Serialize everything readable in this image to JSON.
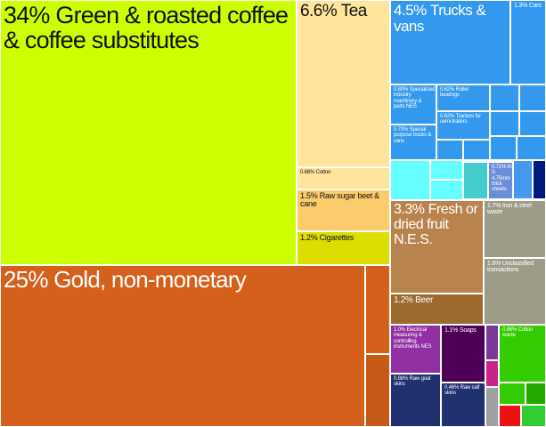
{
  "chart_data": {
    "type": "treemap",
    "categories": [
      "Green & roasted coffee & coffee substitutes",
      "Gold, non-monetary",
      "Tea",
      "Trucks & vans",
      "Fresh or dried fruit N.E.S.",
      "Iron & steel waste",
      "Unclassified transactions",
      "Raw sugar beet & cane",
      "Cars",
      "Cigarettes",
      "Beer",
      "Soaps",
      "Electrical measuring & controlling instruments NES",
      "Raw goat skins",
      "Cotton waste",
      "Specialized industry machinery & parts NES",
      "Iron/steel 3-4.75mm thick sheets",
      "Special purpose trucks & vans",
      "Cotton",
      "Roller bearings",
      "Tractors for semi-trailers",
      "Raw calf skins"
    ],
    "values": [
      34,
      25,
      6.6,
      4.5,
      3.3,
      1.7,
      1.6,
      1.5,
      1.3,
      1.2,
      1.2,
      1.1,
      1.0,
      0.88,
      0.86,
      0.8,
      0.71,
      0.7,
      0.68,
      0.62,
      0.62,
      0.46
    ],
    "value_labels": [
      "34%",
      "25%",
      "6.6%",
      "4.5%",
      "3.3%",
      "1.7%",
      "1.6%",
      "1.5%",
      "1.3%",
      "1.2%",
      "1.2%",
      "1.1%",
      "1.0%",
      "0.88%",
      "0.86%",
      "0.80%",
      "0.71%",
      "0.70%",
      "0.68%",
      "0.62%",
      "0.62%",
      "0.46%"
    ],
    "colors": [
      "#ccff00",
      "#d4601c",
      "#ffe49c",
      "#3399ee",
      "#b8834c",
      "#9c9c88",
      "#9c9c88",
      "#fccc6c",
      "#3399ee",
      "#dddd00",
      "#9d6b2d",
      "#4d0055",
      "#912fa3",
      "#203070",
      "#33cc00",
      "#3399ee",
      "#6b8ed9",
      "#3399ee",
      "#ffe49c",
      "#3399ee",
      "#3399ee",
      "#203070"
    ]
  }
}
